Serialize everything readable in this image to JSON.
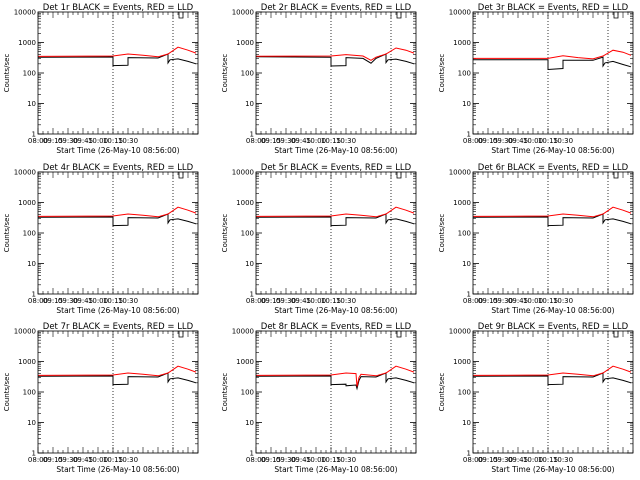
{
  "colors": {
    "events": "#000000",
    "lld": "#ff0000",
    "axis": "#000000",
    "background": "#ffffff"
  },
  "chart_data": {
    "type": "line",
    "layout": "3x3 grid of panels",
    "ylabel": "Counts/sec",
    "xlabel": "Start Time (26-May-10 08:56:00)",
    "yscale": "log",
    "ylim": [
      1,
      10000
    ],
    "y_ticks": [
      1,
      10,
      100,
      1000,
      10000
    ],
    "y_tick_labels": [
      "1",
      "10",
      "100",
      "1000",
      "10000"
    ],
    "xlim": [
      "08:00",
      "10:40"
    ],
    "x_ticks": [
      "08:00",
      "08:15",
      "08:30",
      "08:45",
      "09:00",
      "09:15",
      "09:30",
      "09:45",
      "10:00",
      "10:15",
      "10:30"
    ],
    "x_tick_labels": [
      "08:00",
      "09:15",
      "09:30",
      "09:45",
      "10:00",
      "10:15",
      "10:30"
    ],
    "vertical_dotted_lines": [
      "09:15",
      "10:15"
    ],
    "legend_marker": "small bracket at top near 10:23",
    "grid": false,
    "panels": [
      {
        "title": "Det 1r BLACK = Events, RED = LLD",
        "series": [
          {
            "name": "Events",
            "color": "#000000",
            "x": [
              "08:00",
              "09:15",
              "09:15",
              "09:30",
              "09:30",
              "10:00",
              "10:10",
              "10:10",
              "10:12",
              "10:20",
              "10:30",
              "10:38"
            ],
            "y": [
              330,
              335,
              175,
              180,
              320,
              310,
              420,
              215,
              270,
              290,
              240,
              200
            ]
          },
          {
            "name": "LLD",
            "color": "#ff0000",
            "x": [
              "08:00",
              "09:15",
              "09:30",
              "09:45",
              "10:00",
              "10:10",
              "10:20",
              "10:30",
              "10:38"
            ],
            "y": [
              350,
              360,
              420,
              380,
              340,
              420,
              700,
              560,
              450
            ]
          }
        ]
      },
      {
        "title": "Det 2r BLACK = Events, RED = LLD",
        "series": [
          {
            "name": "Events",
            "color": "#000000",
            "x": [
              "08:00",
              "09:15",
              "09:15",
              "09:30",
              "09:30",
              "09:47",
              "09:55",
              "10:00",
              "10:10",
              "10:10",
              "10:12",
              "10:20",
              "10:30",
              "10:38"
            ],
            "y": [
              340,
              330,
              170,
              175,
              320,
              300,
              210,
              300,
              420,
              220,
              270,
              285,
              240,
              200
            ]
          },
          {
            "name": "LLD",
            "color": "#ff0000",
            "x": [
              "08:00",
              "09:15",
              "09:30",
              "09:47",
              "09:55",
              "10:00",
              "10:10",
              "10:20",
              "10:30",
              "10:38"
            ],
            "y": [
              355,
              360,
              400,
              360,
              260,
              330,
              420,
              660,
              560,
              450
            ]
          }
        ]
      },
      {
        "title": "Det 3r BLACK = Events, RED = LLD",
        "series": [
          {
            "name": "Events",
            "color": "#000000",
            "x": [
              "08:00",
              "09:15",
              "09:15",
              "09:30",
              "09:30",
              "10:00",
              "10:10",
              "10:10",
              "10:12",
              "10:20",
              "10:30",
              "10:38"
            ],
            "y": [
              270,
              270,
              130,
              140,
              260,
              260,
              330,
              170,
              215,
              240,
              190,
              160
            ]
          },
          {
            "name": "LLD",
            "color": "#ff0000",
            "x": [
              "08:00",
              "09:15",
              "09:30",
              "09:45",
              "10:00",
              "10:10",
              "10:20",
              "10:30",
              "10:38"
            ],
            "y": [
              300,
              300,
              370,
              320,
              290,
              360,
              560,
              480,
              380
            ]
          }
        ]
      },
      {
        "title": "Det 4r BLACK = Events, RED = LLD",
        "series": [
          {
            "name": "Events",
            "color": "#000000",
            "x": [
              "08:00",
              "09:15",
              "09:15",
              "09:30",
              "09:30",
              "10:00",
              "10:10",
              "10:10",
              "10:12",
              "10:20",
              "10:30",
              "10:38"
            ],
            "y": [
              330,
              335,
              175,
              180,
              320,
              310,
              420,
              215,
              270,
              290,
              240,
              200
            ]
          },
          {
            "name": "LLD",
            "color": "#ff0000",
            "x": [
              "08:00",
              "09:15",
              "09:30",
              "09:45",
              "10:00",
              "10:10",
              "10:20",
              "10:30",
              "10:38"
            ],
            "y": [
              350,
              360,
              420,
              380,
              340,
              420,
              700,
              560,
              450
            ]
          }
        ]
      },
      {
        "title": "Det 5r BLACK = Events, RED = LLD",
        "series": [
          {
            "name": "Events",
            "color": "#000000",
            "x": [
              "08:00",
              "09:15",
              "09:15",
              "09:30",
              "09:30",
              "10:00",
              "10:10",
              "10:10",
              "10:12",
              "10:20",
              "10:30",
              "10:38"
            ],
            "y": [
              330,
              335,
              175,
              180,
              320,
              310,
              420,
              215,
              270,
              290,
              240,
              200
            ]
          },
          {
            "name": "LLD",
            "color": "#ff0000",
            "x": [
              "08:00",
              "09:15",
              "09:30",
              "09:45",
              "10:00",
              "10:10",
              "10:20",
              "10:30",
              "10:38"
            ],
            "y": [
              350,
              360,
              420,
              380,
              340,
              420,
              700,
              560,
              450
            ]
          }
        ]
      },
      {
        "title": "Det 6r BLACK = Events, RED = LLD",
        "series": [
          {
            "name": "Events",
            "color": "#000000",
            "x": [
              "08:00",
              "09:15",
              "09:15",
              "09:30",
              "09:30",
              "10:00",
              "10:10",
              "10:10",
              "10:12",
              "10:20",
              "10:30",
              "10:38"
            ],
            "y": [
              330,
              335,
              175,
              180,
              320,
              310,
              420,
              215,
              270,
              290,
              240,
              200
            ]
          },
          {
            "name": "LLD",
            "color": "#ff0000",
            "x": [
              "08:00",
              "09:15",
              "09:30",
              "09:45",
              "10:00",
              "10:10",
              "10:20",
              "10:30",
              "10:38"
            ],
            "y": [
              350,
              360,
              420,
              380,
              340,
              420,
              700,
              560,
              450
            ]
          }
        ]
      },
      {
        "title": "Det 7r BLACK = Events, RED = LLD",
        "series": [
          {
            "name": "Events",
            "color": "#000000",
            "x": [
              "08:00",
              "09:15",
              "09:15",
              "09:30",
              "09:30",
              "10:00",
              "10:10",
              "10:10",
              "10:12",
              "10:20",
              "10:30",
              "10:38"
            ],
            "y": [
              330,
              335,
              175,
              180,
              320,
              310,
              420,
              215,
              270,
              290,
              240,
              200
            ]
          },
          {
            "name": "LLD",
            "color": "#ff0000",
            "x": [
              "08:00",
              "09:15",
              "09:30",
              "09:45",
              "10:00",
              "10:10",
              "10:20",
              "10:30",
              "10:38"
            ],
            "y": [
              350,
              360,
              420,
              380,
              340,
              420,
              700,
              560,
              450
            ]
          }
        ]
      },
      {
        "title": "Det 8r BLACK = Events, RED = LLD",
        "series": [
          {
            "name": "Events",
            "color": "#000000",
            "x": [
              "08:00",
              "09:15",
              "09:15",
              "09:30",
              "09:30",
              "09:40",
              "09:41",
              "09:43",
              "09:45",
              "10:00",
              "10:10",
              "10:10",
              "10:12",
              "10:20",
              "10:30",
              "10:38"
            ],
            "y": [
              330,
              335,
              175,
              180,
              160,
              170,
              130,
              240,
              320,
              310,
              420,
              215,
              270,
              290,
              240,
              200
            ]
          },
          {
            "name": "LLD",
            "color": "#ff0000",
            "x": [
              "08:00",
              "09:15",
              "09:30",
              "09:40",
              "09:41",
              "09:43",
              "09:45",
              "10:00",
              "10:10",
              "10:20",
              "10:30",
              "10:38"
            ],
            "y": [
              350,
              360,
              420,
              400,
              150,
              300,
              380,
              340,
              420,
              700,
              560,
              450
            ]
          }
        ]
      },
      {
        "title": "Det 9r BLACK = Events, RED = LLD",
        "series": [
          {
            "name": "Events",
            "color": "#000000",
            "x": [
              "08:00",
              "09:15",
              "09:15",
              "09:30",
              "09:30",
              "10:00",
              "10:10",
              "10:10",
              "10:12",
              "10:20",
              "10:30",
              "10:38"
            ],
            "y": [
              330,
              335,
              175,
              180,
              320,
              310,
              420,
              215,
              270,
              290,
              240,
              200
            ]
          },
          {
            "name": "LLD",
            "color": "#ff0000",
            "x": [
              "08:00",
              "09:15",
              "09:30",
              "09:45",
              "10:00",
              "10:10",
              "10:20",
              "10:30",
              "10:38"
            ],
            "y": [
              350,
              360,
              420,
              380,
              340,
              420,
              700,
              560,
              450
            ]
          }
        ]
      }
    ]
  }
}
